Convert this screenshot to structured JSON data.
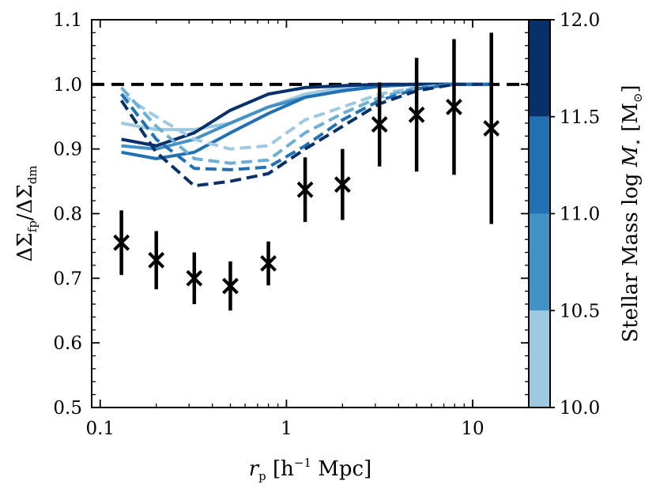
{
  "chart_data": {
    "type": "line",
    "xscale": "log",
    "xlim": [
      0.09,
      20
    ],
    "ylim": [
      0.5,
      1.1
    ],
    "x_ticks": [
      {
        "value": 0.1,
        "label": "0.1"
      },
      {
        "value": 1,
        "label": "1"
      },
      {
        "value": 10,
        "label": "10"
      }
    ],
    "y_ticks": [
      {
        "value": 0.5,
        "label": "0.5"
      },
      {
        "value": 0.6,
        "label": "0.6"
      },
      {
        "value": 0.7,
        "label": "0.7"
      },
      {
        "value": 0.8,
        "label": "0.8"
      },
      {
        "value": 0.9,
        "label": "0.9"
      },
      {
        "value": 1.0,
        "label": "1.0"
      },
      {
        "value": 1.1,
        "label": "1.1"
      }
    ],
    "xlabel": {
      "main": "r",
      "sub": "p",
      "rest": " [h",
      "sup": "−1",
      "tail": " Mpc]"
    },
    "ylabel": {
      "d1": "ΔΣ",
      "s1": "fp",
      "slash": "/ΔΣ",
      "s2": "dm"
    },
    "reference_line": {
      "y": 1.0,
      "style": "dashed",
      "color": "#000000"
    },
    "x": [
      0.13,
      0.2,
      0.32,
      0.5,
      0.8,
      1.26,
      2.0,
      3.16,
      5.0,
      7.94,
      12.6
    ],
    "series": [
      {
        "name": "solid 10.0-10.5",
        "style": "solid",
        "color": "#9ecae1",
        "values": [
          0.94,
          0.93,
          0.93,
          0.94,
          0.965,
          0.985,
          0.995,
          0.998,
          1.0,
          1.0,
          1.0
        ]
      },
      {
        "name": "solid 10.5-11.0",
        "style": "solid",
        "color": "#4292c6",
        "values": [
          0.905,
          0.9,
          0.915,
          0.94,
          0.965,
          0.98,
          0.99,
          0.997,
          1.0,
          1.0,
          1.0
        ]
      },
      {
        "name": "solid 11.0-11.5",
        "style": "solid",
        "color": "#2171b5",
        "values": [
          0.895,
          0.885,
          0.895,
          0.925,
          0.955,
          0.98,
          0.99,
          0.997,
          1.0,
          1.0,
          1.0
        ]
      },
      {
        "name": "solid 11.5-12.0",
        "style": "solid",
        "color": "#08306b",
        "values": [
          0.915,
          0.905,
          0.925,
          0.96,
          0.985,
          0.995,
          0.998,
          1.0,
          1.0,
          1.0,
          1.0
        ]
      },
      {
        "name": "dashed 10.0-10.5",
        "style": "dashed",
        "color": "#9ecae1",
        "values": [
          0.985,
          0.95,
          0.915,
          0.9,
          0.905,
          0.945,
          0.965,
          0.985,
          0.995,
          1.0,
          1.0
        ]
      },
      {
        "name": "dashed 10.5-11.0",
        "style": "dashed",
        "color": "#6baed6",
        "values": [
          0.995,
          0.935,
          0.885,
          0.878,
          0.883,
          0.925,
          0.955,
          0.98,
          0.995,
          1.0,
          1.0
        ]
      },
      {
        "name": "dashed 11.0-11.5",
        "style": "dashed",
        "color": "#2171b5",
        "values": [
          0.985,
          0.915,
          0.87,
          0.868,
          0.872,
          0.905,
          0.945,
          0.975,
          0.993,
          1.0,
          1.0
        ]
      },
      {
        "name": "dashed 11.5-12.0",
        "style": "dashed",
        "color": "#08306b",
        "values": [
          0.975,
          0.895,
          0.843,
          0.85,
          0.862,
          0.9,
          0.935,
          0.97,
          0.99,
          1.0,
          1.0
        ]
      }
    ],
    "points": {
      "marker": "x",
      "color": "#000000",
      "x": [
        0.13,
        0.2,
        0.32,
        0.5,
        0.8,
        1.26,
        2.0,
        3.16,
        5.0,
        7.94,
        12.6
      ],
      "y": [
        0.755,
        0.728,
        0.7,
        0.688,
        0.723,
        0.837,
        0.845,
        0.938,
        0.953,
        0.965,
        0.932
      ],
      "err": [
        0.05,
        0.045,
        0.04,
        0.038,
        0.034,
        0.05,
        0.055,
        0.065,
        0.088,
        0.105,
        0.148
      ]
    },
    "colorbar": {
      "label": {
        "text": "Stellar Mass log ",
        "M": "M",
        "sub": "⋆",
        "bracket": " [M",
        "sun": "⊙",
        "end": "]"
      },
      "range": [
        10.0,
        12.0
      ],
      "bins": [
        {
          "from": 10.0,
          "to": 10.5,
          "color": "#9ecae1"
        },
        {
          "from": 10.5,
          "to": 11.0,
          "color": "#4292c6"
        },
        {
          "from": 11.0,
          "to": 11.5,
          "color": "#2171b5"
        },
        {
          "from": 11.5,
          "to": 12.0,
          "color": "#08306b"
        }
      ],
      "ticks": [
        {
          "value": 10.0,
          "label": "10.0"
        },
        {
          "value": 10.5,
          "label": "10.5"
        },
        {
          "value": 11.0,
          "label": "11.0"
        },
        {
          "value": 11.5,
          "label": "11.5"
        },
        {
          "value": 12.0,
          "label": "12.0"
        }
      ]
    }
  }
}
